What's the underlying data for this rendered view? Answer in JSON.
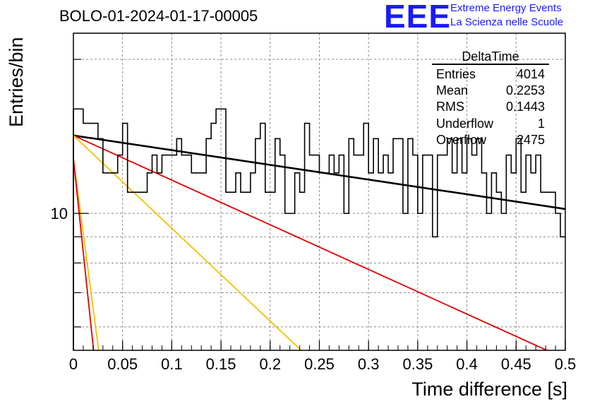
{
  "header": {
    "title": "BOLO-01-2024-01-17-00005",
    "logo_text": "EEE",
    "brand_line1": "Extreme Energy Events",
    "brand_line2": "La Scienza nelle Scuole"
  },
  "stats_box": {
    "title": "DeltaTime",
    "rows": [
      {
        "label": "Entries",
        "value": "4014"
      },
      {
        "label": "Mean",
        "value": "0.2253"
      },
      {
        "label": "RMS",
        "value": "0.1443"
      },
      {
        "label": "Underflow",
        "value": "1"
      },
      {
        "label": "Overflow",
        "value": "2475"
      }
    ]
  },
  "chart_data": {
    "type": "histogram",
    "title": "BOLO-01-2024-01-17-00005",
    "xlabel": "Time difference [s]",
    "ylabel": "Entries/bin",
    "xlim": [
      0,
      0.5
    ],
    "ylim": [
      5.4,
      22.5
    ],
    "yscale": "log",
    "grid": true,
    "xticks": [
      0,
      0.05,
      0.1,
      0.15,
      0.2,
      0.25,
      0.3,
      0.35,
      0.4,
      0.45,
      0.5
    ],
    "xtick_labels": [
      "0",
      "0.05",
      "0.1",
      "0.15",
      "0.2",
      "0.25",
      "0.3",
      "0.35",
      "0.4",
      "0.45",
      "0.5"
    ],
    "yticks": [
      10
    ],
    "ytick_labels": [
      "10"
    ],
    "bin_width": 0.005,
    "counts": [
      16,
      16,
      15,
      15,
      15,
      14,
      12,
      12,
      12,
      13,
      15,
      11,
      11,
      11,
      11,
      12,
      13,
      12,
      13,
      13,
      13,
      14,
      13,
      13,
      12,
      12,
      12,
      14,
      15,
      16,
      16,
      11,
      11,
      12,
      11,
      11,
      12,
      14,
      15,
      11,
      11,
      14,
      13,
      10,
      10,
      12,
      11,
      15,
      13,
      13,
      12,
      12,
      13,
      12,
      13,
      10,
      14,
      13,
      13,
      15,
      12,
      14,
      12,
      13,
      12,
      14,
      14,
      10,
      14,
      13,
      10,
      13,
      13,
      9,
      13,
      13,
      14,
      12,
      14,
      12,
      14,
      13,
      14,
      12,
      10,
      12,
      11,
      10,
      13,
      12,
      14,
      11,
      13,
      12,
      13,
      11,
      11,
      11,
      10,
      9
    ],
    "fits": [
      {
        "color": "#000000",
        "y0": 14.2,
        "y1": 10.2
      },
      {
        "color": "#e00000",
        "y0": 14.2,
        "y1": 5.2
      },
      {
        "color": "#f5c000",
        "y0": 14.2,
        "y1": 5.4,
        "x_end": 0.2315
      },
      {
        "color": "#f5c000",
        "y0": 12.8,
        "y1": 5.4,
        "x_end": 0.0257
      },
      {
        "color": "#e00000",
        "y0": 12.8,
        "y1": 5.4,
        "x_end": 0.0205
      }
    ]
  }
}
